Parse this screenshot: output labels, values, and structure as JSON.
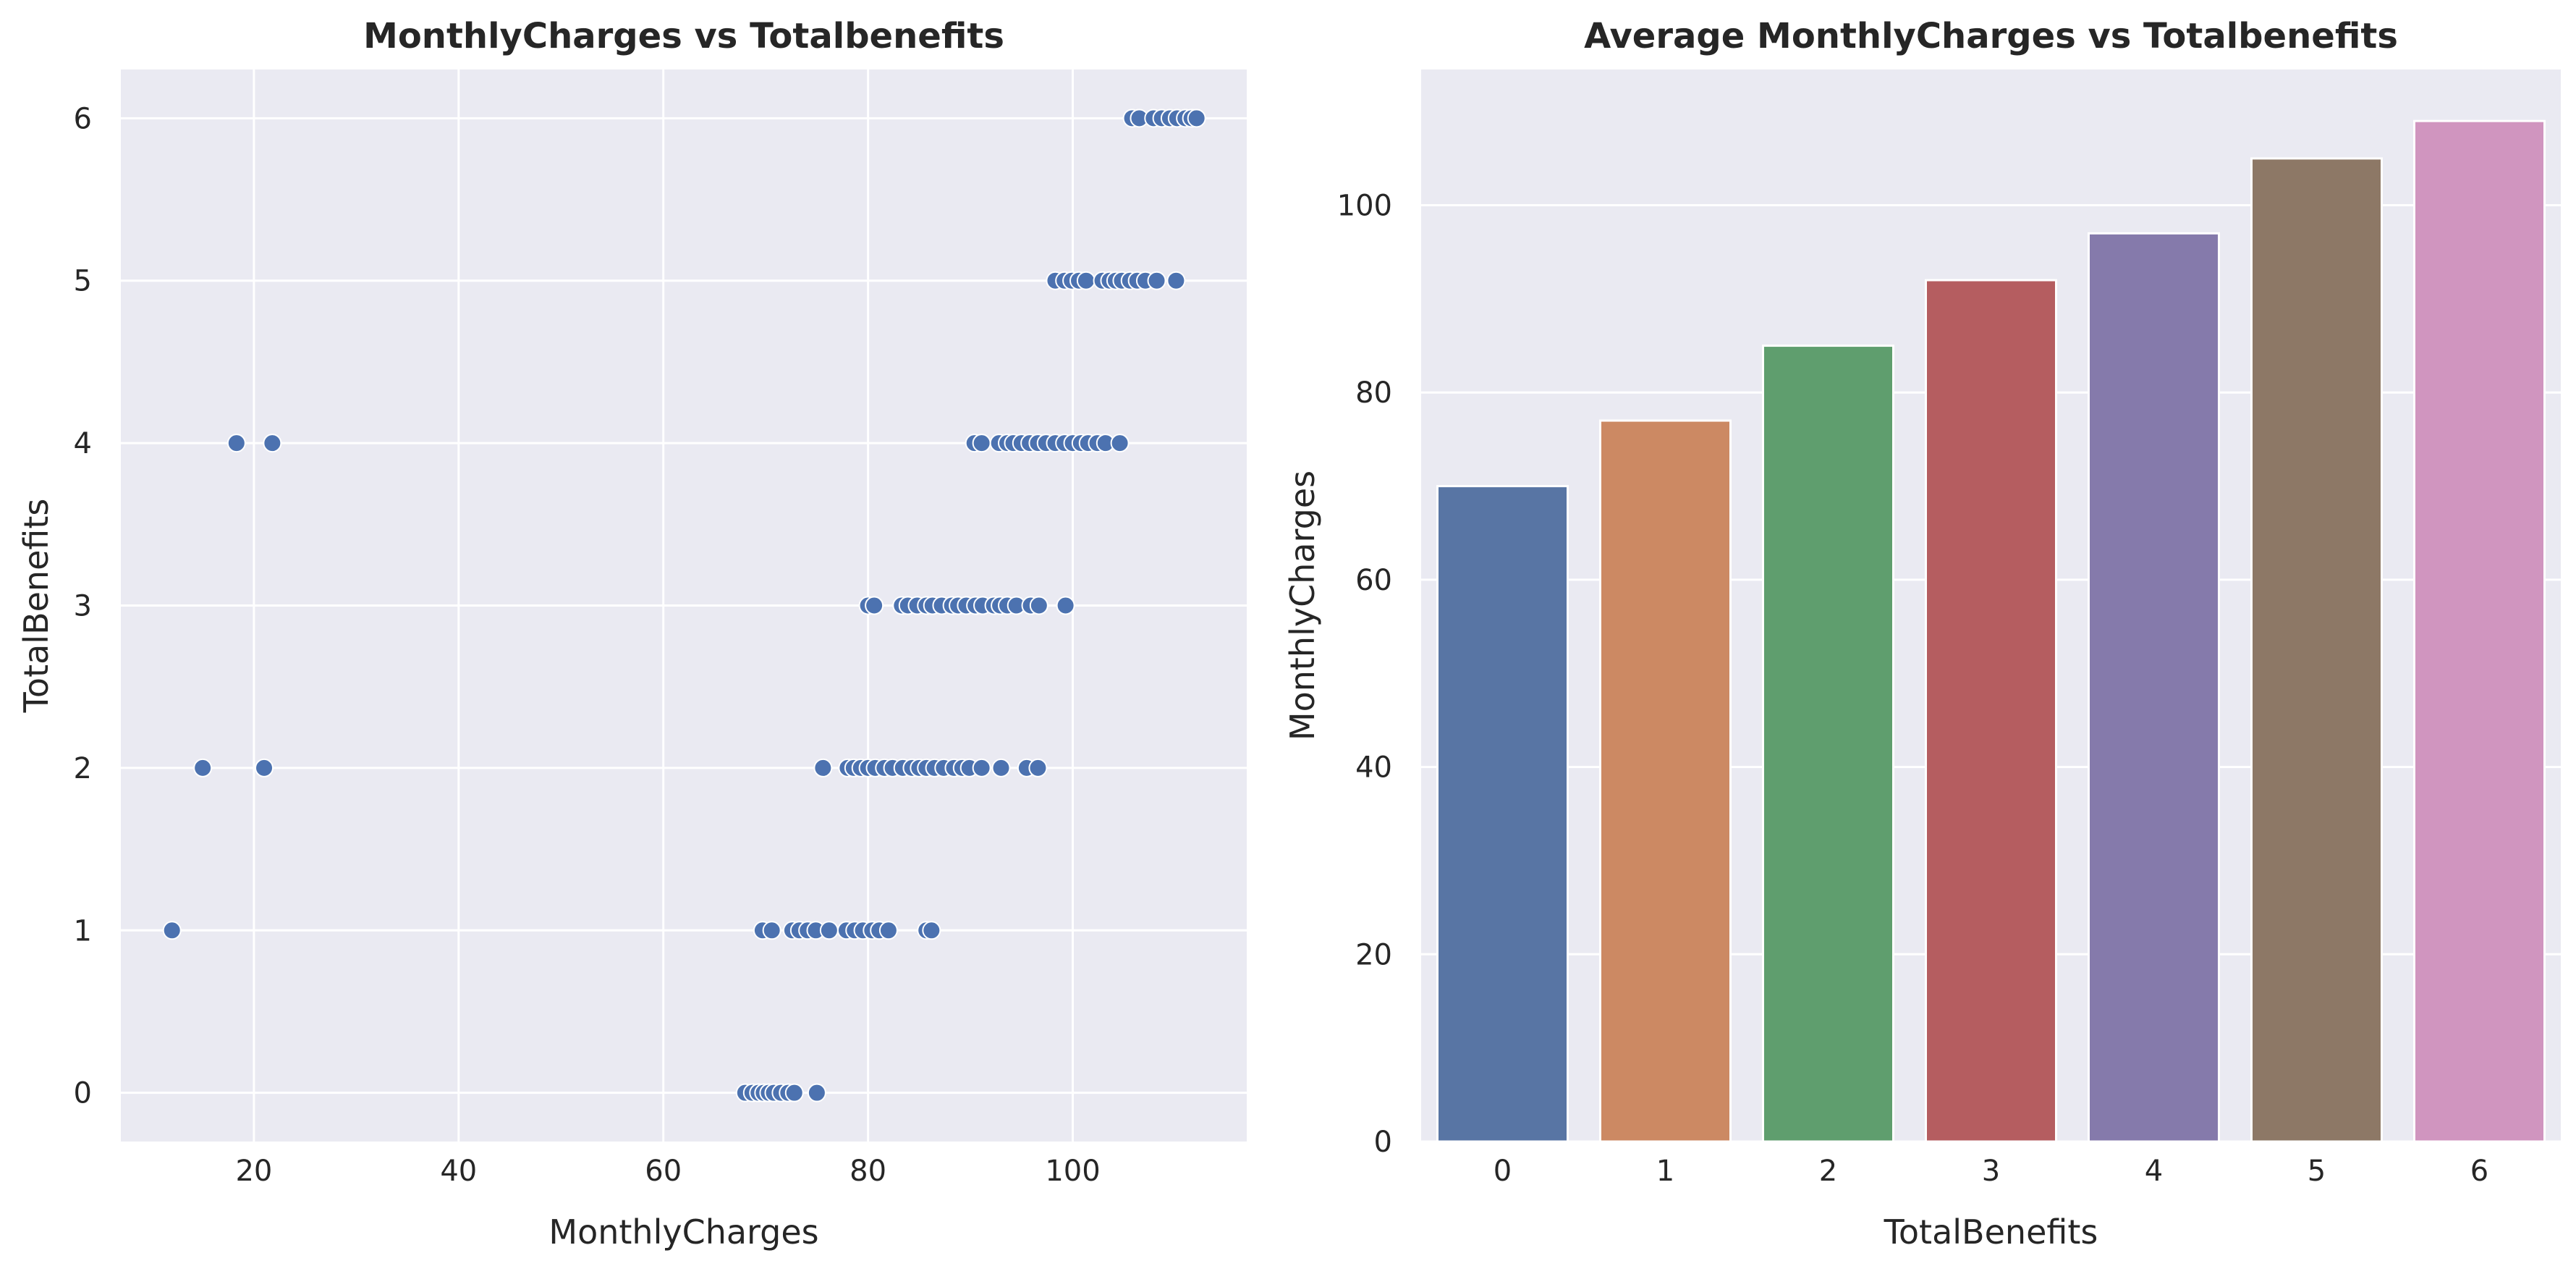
{
  "chart_data": [
    {
      "type": "scatter",
      "title": "MonthlyCharges vs Totalbenefits",
      "xlabel": "MonthlyCharges",
      "ylabel": "TotalBenefits",
      "xlim": [
        7,
        117
      ],
      "ylim": [
        -0.3,
        6.3
      ],
      "xticks": [
        20,
        40,
        60,
        80,
        100
      ],
      "yticks": [
        0,
        1,
        2,
        3,
        4,
        5,
        6
      ],
      "grid": true,
      "colors": {
        "point": "#4c72b0",
        "background": "#eaeaf2",
        "grid": "#ffffff"
      },
      "series": [
        {
          "points": [
            [
              68,
              0
            ],
            [
              68.7,
              0
            ],
            [
              69.3,
              0
            ],
            [
              69.8,
              0
            ],
            [
              70.3,
              0
            ],
            [
              70.8,
              0
            ],
            [
              71.5,
              0
            ],
            [
              72.2,
              0
            ],
            [
              72.8,
              0
            ],
            [
              75,
              0
            ],
            [
              12,
              1
            ],
            [
              69.7,
              1
            ],
            [
              70.6,
              1
            ],
            [
              72.6,
              1
            ],
            [
              73.3,
              1
            ],
            [
              74.1,
              1
            ],
            [
              74.9,
              1
            ],
            [
              76.2,
              1
            ],
            [
              77.9,
              1
            ],
            [
              78.7,
              1
            ],
            [
              79.5,
              1
            ],
            [
              80.4,
              1
            ],
            [
              81.1,
              1
            ],
            [
              82,
              1
            ],
            [
              85.7,
              1
            ],
            [
              86.2,
              1
            ],
            [
              15,
              2
            ],
            [
              21,
              2
            ],
            [
              75.6,
              2
            ],
            [
              78,
              2
            ],
            [
              78.6,
              2
            ],
            [
              79.3,
              2
            ],
            [
              80,
              2
            ],
            [
              80.7,
              2
            ],
            [
              81.6,
              2
            ],
            [
              82.4,
              2
            ],
            [
              83.4,
              2
            ],
            [
              84.3,
              2
            ],
            [
              85,
              2
            ],
            [
              85.7,
              2
            ],
            [
              86.5,
              2
            ],
            [
              87.4,
              2
            ],
            [
              88.4,
              2
            ],
            [
              89.2,
              2
            ],
            [
              89.9,
              2
            ],
            [
              91.1,
              2
            ],
            [
              93,
              2
            ],
            [
              95.5,
              2
            ],
            [
              96.6,
              2
            ],
            [
              80,
              3
            ],
            [
              80.6,
              3
            ],
            [
              83.3,
              3
            ],
            [
              83.9,
              3
            ],
            [
              84.8,
              3
            ],
            [
              85.7,
              3
            ],
            [
              86.3,
              3
            ],
            [
              87.2,
              3
            ],
            [
              88.2,
              3
            ],
            [
              88.8,
              3
            ],
            [
              89.6,
              3
            ],
            [
              90.5,
              3
            ],
            [
              91.2,
              3
            ],
            [
              92.3,
              3
            ],
            [
              92.9,
              3
            ],
            [
              93.6,
              3
            ],
            [
              94.5,
              3
            ],
            [
              95.9,
              3
            ],
            [
              96.7,
              3
            ],
            [
              99.3,
              3
            ],
            [
              18.3,
              4
            ],
            [
              21.8,
              4
            ],
            [
              90.4,
              4
            ],
            [
              91.1,
              4
            ],
            [
              92.8,
              4
            ],
            [
              93.6,
              4
            ],
            [
              94.2,
              4
            ],
            [
              95,
              4
            ],
            [
              95.8,
              4
            ],
            [
              96.6,
              4
            ],
            [
              97.4,
              4
            ],
            [
              98.3,
              4
            ],
            [
              99.2,
              4
            ],
            [
              100,
              4
            ],
            [
              100.8,
              4
            ],
            [
              101.5,
              4
            ],
            [
              102.4,
              4
            ],
            [
              103.2,
              4
            ],
            [
              104.6,
              4
            ],
            [
              98.3,
              5
            ],
            [
              99.2,
              5
            ],
            [
              99.9,
              5
            ],
            [
              100.6,
              5
            ],
            [
              101.3,
              5
            ],
            [
              102.9,
              5
            ],
            [
              103.6,
              5
            ],
            [
              104.2,
              5
            ],
            [
              104.8,
              5
            ],
            [
              105.6,
              5
            ],
            [
              106.3,
              5
            ],
            [
              107.1,
              5
            ],
            [
              108.2,
              5
            ],
            [
              110.1,
              5
            ],
            [
              105.8,
              6
            ],
            [
              106.5,
              6
            ],
            [
              107.9,
              6
            ],
            [
              108.7,
              6
            ],
            [
              109.5,
              6
            ],
            [
              110.2,
              6
            ],
            [
              111,
              6
            ],
            [
              111.6,
              6
            ],
            [
              112.1,
              6
            ]
          ]
        }
      ]
    },
    {
      "type": "bar",
      "title": "Average MonthlyCharges vs Totalbenefits",
      "xlabel": "TotalBenefits",
      "ylabel": "MonthlyCharges",
      "categories": [
        "0",
        "1",
        "2",
        "3",
        "4",
        "5",
        "6"
      ],
      "values": [
        70,
        77,
        85,
        92,
        97,
        105,
        109
      ],
      "ylim": [
        0,
        114.5
      ],
      "yticks": [
        0,
        20,
        40,
        60,
        80,
        100
      ],
      "grid": true,
      "colors": {
        "bars": [
          "#5875a4",
          "#cc8963",
          "#5f9e6e",
          "#b55d60",
          "#857aab",
          "#8d7866",
          "#d095bf"
        ],
        "background": "#eaeaf2",
        "grid": "#ffffff"
      }
    }
  ]
}
